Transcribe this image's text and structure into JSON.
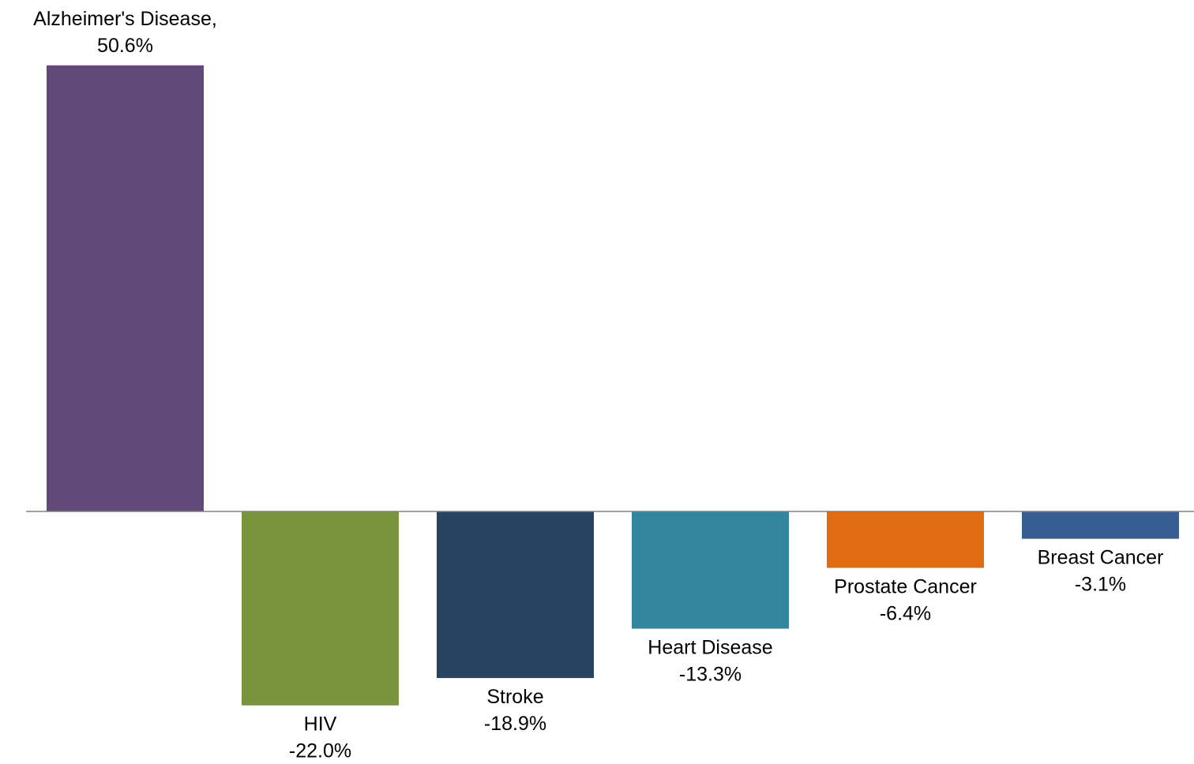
{
  "chart_data": {
    "type": "bar",
    "categories": [
      "Alzheimer's Disease",
      "HIV",
      "Stroke",
      "Heart Disease",
      "Prostate Cancer",
      "Breast Cancer"
    ],
    "values": [
      50.6,
      -22.0,
      -18.9,
      -13.3,
      -6.4,
      -3.1
    ],
    "value_labels": [
      "50.6%",
      "-22.0%",
      "-18.9%",
      "-13.3%",
      "-6.4%",
      "-3.1%"
    ],
    "category_labels": [
      "Alzheimer's Disease,",
      "HIV",
      "Stroke",
      "Heart Disease",
      "Prostate Cancer",
      "Breast Cancer"
    ],
    "colors": [
      "#614a7a",
      "#7a943e",
      "#284261",
      "#32879e",
      "#e26c11",
      "#375e93"
    ],
    "baseline_color": "#808080",
    "ylim": [
      -25,
      55
    ],
    "grid": false,
    "legend": "none",
    "title": "",
    "xlabel": "",
    "ylabel": ""
  }
}
